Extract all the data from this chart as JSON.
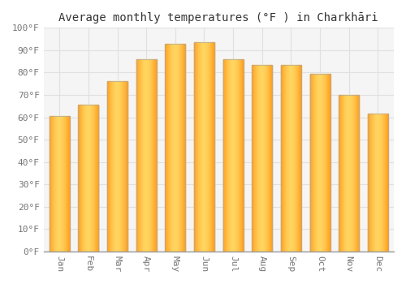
{
  "title": "Average monthly temperatures (°F ) in Charkhāri",
  "months": [
    "Jan",
    "Feb",
    "Mar",
    "Apr",
    "May",
    "Jun",
    "Jul",
    "Aug",
    "Sep",
    "Oct",
    "Nov",
    "Dec"
  ],
  "values": [
    60.5,
    65.5,
    76,
    86,
    93,
    93.5,
    86,
    83.5,
    83.5,
    79.5,
    70,
    61.5
  ],
  "ylim": [
    0,
    100
  ],
  "background_color": "#FFFFFF",
  "plot_bg_color": "#F5F5F5",
  "grid_color": "#E0E0E0",
  "bar_color_left": "#FFA020",
  "bar_color_center": "#FFD060",
  "bar_color_right": "#FFA020",
  "bar_edge_color": "#AAAAAA",
  "title_fontsize": 10,
  "tick_fontsize": 8,
  "bar_width": 0.7
}
